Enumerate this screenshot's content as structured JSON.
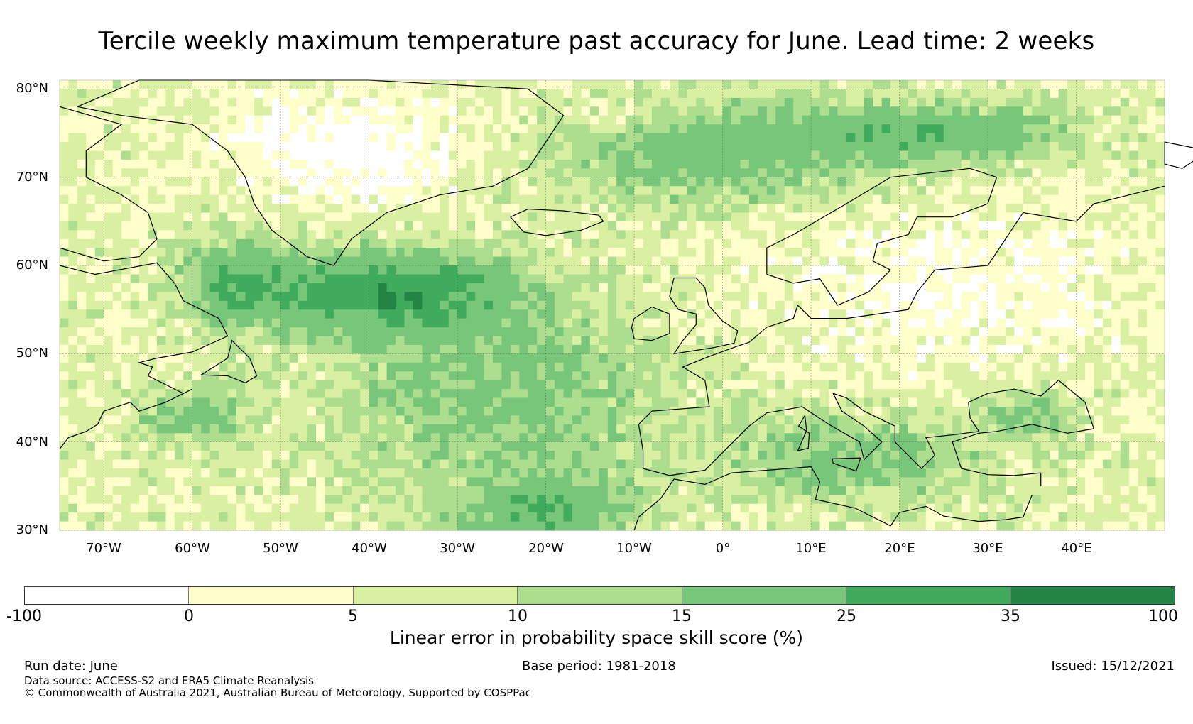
{
  "title": "Tercile weekly maximum temperature past accuracy for June. Lead time: 2 weeks",
  "map": {
    "lon_range": [
      -75,
      50
    ],
    "lat_range": [
      30,
      81
    ],
    "lat_ticks": [
      "80°N",
      "70°N",
      "60°N",
      "50°N",
      "40°N",
      "30°N"
    ],
    "lat_tick_values": [
      80,
      70,
      60,
      50,
      40,
      30
    ],
    "lon_ticks": [
      "70°W",
      "60°W",
      "50°W",
      "40°W",
      "30°W",
      "20°W",
      "10°W",
      "0°",
      "10°E",
      "20°E",
      "30°E",
      "40°E"
    ],
    "lon_tick_values": [
      -70,
      -60,
      -50,
      -40,
      -30,
      -20,
      -10,
      0,
      10,
      20,
      30,
      40
    ],
    "gridlines": true
  },
  "colorbar": {
    "title": "Linear error in probability space skill score (%)",
    "ticks": [
      "-100",
      "0",
      "5",
      "10",
      "15",
      "25",
      "35",
      "100"
    ],
    "colors": [
      "#ffffff",
      "#ffffcc",
      "#d9f0a3",
      "#addd8e",
      "#78c679",
      "#41ab5d",
      "#238443"
    ]
  },
  "footer": {
    "run_date": "Run date: June",
    "base_period": "Base period: 1981-2018",
    "issued": "Issued: 15/12/2021",
    "data_source": "Data source: ACCESS-S2 and ERA5 Climate Reanalysis",
    "copyright": "© Commonwealth of Australia 2021, Australian Bureau of Meteorology, Supported by COSPPac"
  }
}
